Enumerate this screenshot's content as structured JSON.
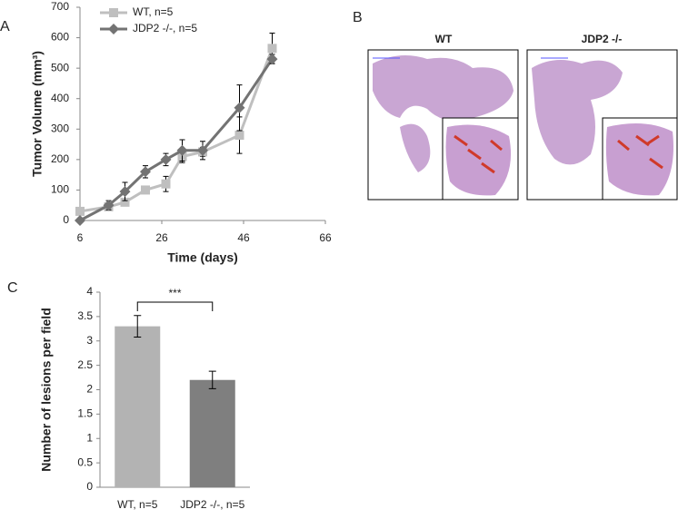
{
  "chart_data": [
    {
      "type": "line",
      "panel_label": "A",
      "xlabel": "Time (days)",
      "ylabel": "Tumor Volume (mm³)",
      "xlim": [
        6,
        66
      ],
      "xticks": [
        6,
        26,
        46,
        66
      ],
      "ylim": [
        0,
        700
      ],
      "yticks": [
        0,
        100,
        200,
        300,
        400,
        500,
        600,
        700
      ],
      "grid": false,
      "legend": "upper left",
      "x": [
        6,
        13,
        17,
        22,
        27,
        31,
        36,
        45,
        53
      ],
      "series": [
        {
          "name": "WT, n=5",
          "color": "#bfbfbf",
          "marker": "square",
          "values": [
            30,
            45,
            60,
            100,
            120,
            210,
            225,
            280,
            565
          ],
          "errors": [
            8,
            10,
            10,
            8,
            25,
            20,
            15,
            60,
            50
          ]
        },
        {
          "name": "JDP2 -/-, n=5",
          "color": "#737373",
          "marker": "diamond",
          "values": [
            0,
            50,
            95,
            160,
            200,
            230,
            230,
            370,
            530
          ],
          "errors": [
            5,
            15,
            30,
            20,
            20,
            35,
            30,
            75,
            15
          ]
        }
      ]
    },
    {
      "type": "bar",
      "panel_label": "C",
      "ylabel": "Number of lesions per field",
      "categories": [
        "WT, n=5",
        "JDP2 -/-, n=5"
      ],
      "values": [
        3.3,
        2.2
      ],
      "errors": [
        0.22,
        0.18
      ],
      "colors": [
        "#b3b3b3",
        "#7f7f7f"
      ],
      "ylim": [
        0,
        4
      ],
      "yticks": [
        0,
        0.5,
        1,
        1.5,
        2,
        2.5,
        3,
        3.5,
        4
      ],
      "annotation": "***"
    }
  ],
  "images": {
    "panel_label": "B",
    "titles": [
      "WT",
      "JDP2 -/-"
    ]
  }
}
